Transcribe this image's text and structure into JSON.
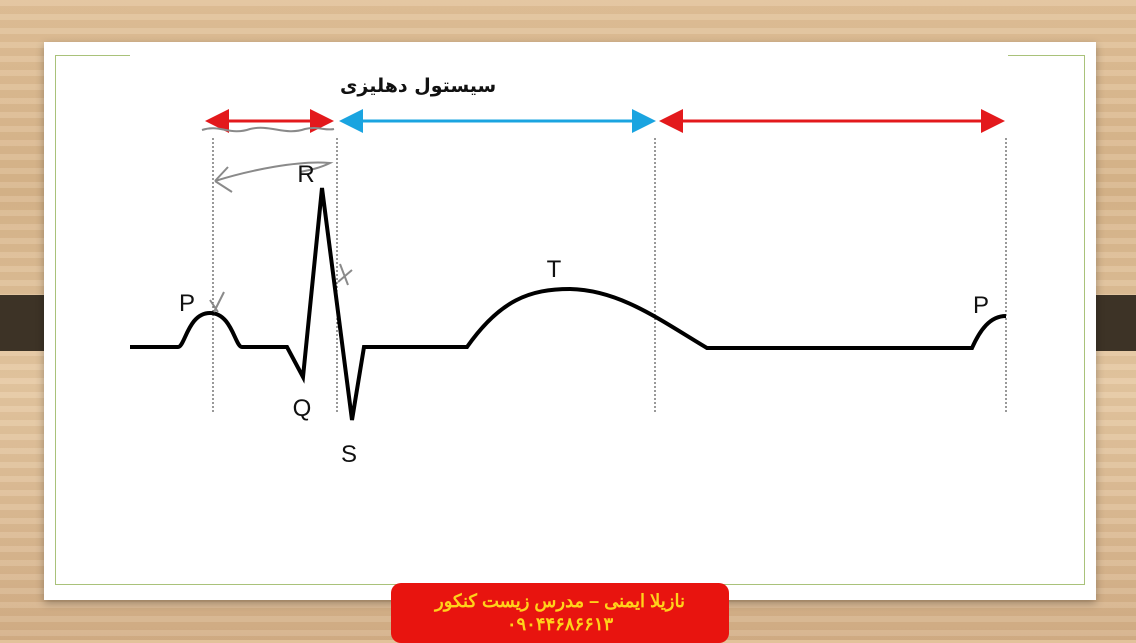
{
  "slide": {
    "title": "سیستول دهلیزی",
    "waves": {
      "p1": "P",
      "q": "Q",
      "r": "R",
      "s": "S",
      "t": "T",
      "p2": "P"
    },
    "colors": {
      "red_arrow": "#e3191c",
      "blue_arrow": "#1aa4e0",
      "ecg": "#000000",
      "annotation": "#8a8a8a"
    }
  },
  "banner": {
    "line1": "نازیلا ایمنی – مدرس زیست کنکور",
    "line2": "۰۹۰۴۴۶۸۶۶۱۳",
    "background": "#e8140f",
    "text_color": "#ffd21a"
  }
}
